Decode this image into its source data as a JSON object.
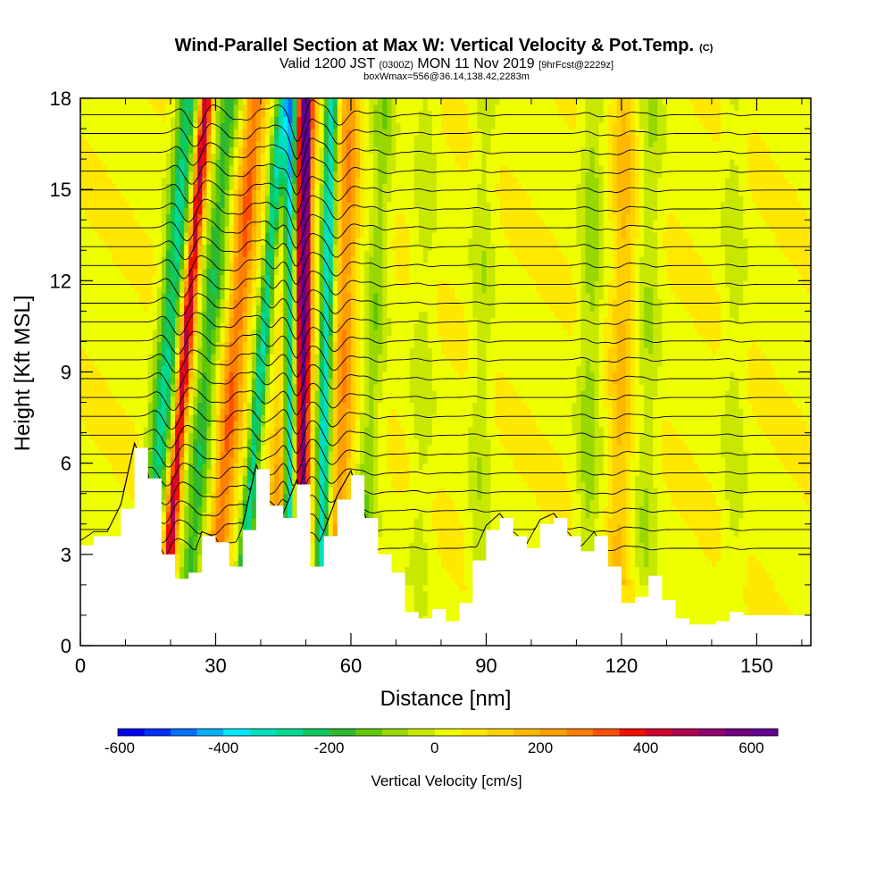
{
  "chart_data": {
    "type": "heatmap",
    "title": "Wind-Parallel Section at Max W: Vertical Velocity & Pot.Temp.",
    "title_mark": "(C)",
    "subtitle_parts": [
      "Valid 1200 JST ",
      "(0300Z)",
      " MON 11 Nov 2019 ",
      "[9hrFcst@2229z]"
    ],
    "subtitle2": "boxWmax=556@36.14,138.42,2283m",
    "xlabel": "Distance [nm]",
    "ylabel": "Height [Kft MSL]",
    "xlim": [
      0,
      162
    ],
    "ylim": [
      0,
      18
    ],
    "x_ticks": [
      "0",
      "30",
      "60",
      "90",
      "120",
      "150"
    ],
    "y_ticks": [
      "0",
      "3",
      "6",
      "9",
      "12",
      "15",
      "18"
    ],
    "colorbar": {
      "label": "Vertical Velocity [cm/s]",
      "ticks": [
        "-600",
        "-400",
        "-200",
        "0",
        "200",
        "400",
        "600"
      ],
      "colors": [
        "#0000f0",
        "#0030ff",
        "#0070ff",
        "#00b0ff",
        "#00e8ff",
        "#00e0c0",
        "#00d890",
        "#10c860",
        "#30b830",
        "#60c800",
        "#98d800",
        "#c8e800",
        "#eeff00",
        "#ffe800",
        "#ffd000",
        "#ffb800",
        "#ffa000",
        "#ff8000",
        "#ff5000",
        "#f01000",
        "#d00030",
        "#b00050",
        "#900070",
        "#700080",
        "#600090"
      ]
    },
    "terrain_profile_x_nm": [
      0,
      3,
      6,
      9,
      12,
      15,
      18,
      21,
      24,
      27,
      30,
      33,
      36,
      39,
      42,
      45,
      48,
      51,
      54,
      57,
      60,
      63,
      66,
      69,
      72,
      75,
      78,
      81,
      84,
      87,
      90,
      93,
      96,
      99,
      102,
      105,
      108,
      111,
      114,
      117,
      120,
      123,
      126,
      129,
      132,
      135,
      138,
      141,
      144,
      147,
      150,
      153,
      156,
      159,
      162
    ],
    "terrain_profile_kft": [
      3.3,
      3.6,
      3.6,
      4.5,
      6.5,
      5.5,
      3.0,
      2.2,
      2.4,
      3.6,
      3.4,
      2.6,
      3.8,
      5.8,
      4.6,
      4.2,
      5.3,
      2.6,
      3.6,
      4.8,
      5.6,
      4.2,
      3.0,
      2.4,
      1.1,
      0.9,
      1.2,
      0.8,
      1.4,
      2.8,
      3.8,
      4.2,
      3.6,
      3.2,
      4.0,
      4.2,
      3.6,
      3.1,
      3.6,
      2.6,
      1.4,
      1.6,
      2.3,
      1.5,
      0.9,
      0.7,
      0.7,
      0.8,
      1.1,
      1.0,
      1.0,
      1.0,
      1.0,
      1.0,
      1.0
    ],
    "vertical_velocity_bands": [
      {
        "x_ground_nm": 14,
        "lean_nm_per_kft": 0.55,
        "peak_cm_s": -300
      },
      {
        "x_ground_nm": 18,
        "lean_nm_per_kft": 0.55,
        "peak_cm_s": 420
      },
      {
        "x_ground_nm": 23,
        "lean_nm_per_kft": 0.55,
        "peak_cm_s": -220
      },
      {
        "x_ground_nm": 29,
        "lean_nm_per_kft": 0.55,
        "peak_cm_s": 260
      },
      {
        "x_ground_nm": 35,
        "lean_nm_per_kft": 0.55,
        "peak_cm_s": -320
      },
      {
        "x_ground_nm": 43,
        "lean_nm_per_kft": 0.35,
        "peak_cm_s": 240
      },
      {
        "x_ground_nm": 46,
        "lean_nm_per_kft": 0.05,
        "peak_cm_s": -560
      },
      {
        "x_ground_nm": 49,
        "lean_nm_per_kft": 0.05,
        "peak_cm_s": 556
      },
      {
        "x_ground_nm": 53,
        "lean_nm_per_kft": 0.15,
        "peak_cm_s": -380
      },
      {
        "x_ground_nm": 57,
        "lean_nm_per_kft": 0.15,
        "peak_cm_s": 200
      },
      {
        "x_ground_nm": 62,
        "lean_nm_per_kft": 0.3,
        "peak_cm_s": -120
      },
      {
        "x_ground_nm": 75,
        "lean_nm_per_kft": 0.1,
        "peak_cm_s": -60
      },
      {
        "x_ground_nm": 88,
        "lean_nm_per_kft": 0.1,
        "peak_cm_s": -70
      },
      {
        "x_ground_nm": 112,
        "lean_nm_per_kft": 0.1,
        "peak_cm_s": -110
      },
      {
        "x_ground_nm": 119,
        "lean_nm_per_kft": 0.1,
        "peak_cm_s": 120
      },
      {
        "x_ground_nm": 125,
        "lean_nm_per_kft": 0.1,
        "peak_cm_s": -80
      },
      {
        "x_ground_nm": 145,
        "lean_nm_per_kft": 0.0,
        "peak_cm_s": -60
      }
    ],
    "isentrope_count": 24,
    "grid": false
  }
}
